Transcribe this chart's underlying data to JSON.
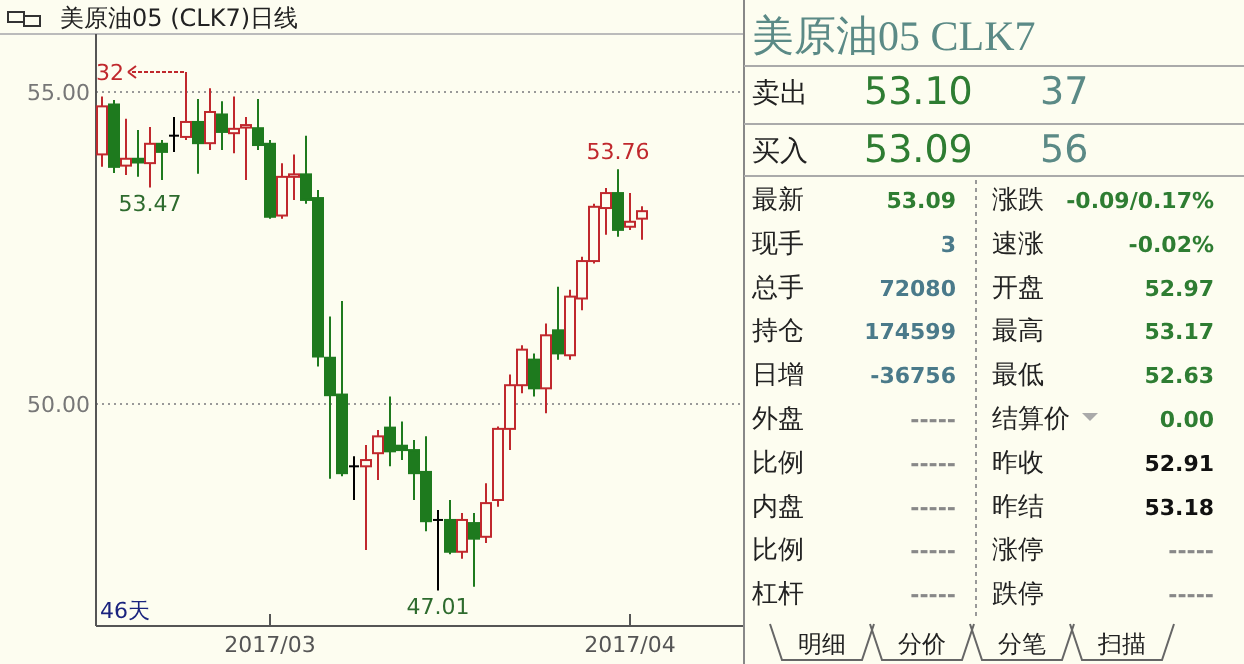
{
  "chart_data": [
    {
      "type": "candlestick",
      "title": "美原油05 (CLK7)日线",
      "categories": [
        null,
        null,
        null,
        null,
        null,
        null,
        null,
        null,
        null,
        null,
        null,
        null,
        null,
        null,
        "2017/03",
        null,
        null,
        null,
        null,
        null,
        null,
        null,
        null,
        null,
        null,
        null,
        null,
        null,
        null,
        null,
        null,
        null,
        null,
        null,
        null,
        null,
        null,
        null,
        null,
        null,
        null,
        null,
        null,
        null,
        "2017/04",
        null
      ],
      "ohlc": [
        [
          54.0,
          54.93,
          53.8,
          54.77
        ],
        [
          54.8,
          54.87,
          53.7,
          53.8
        ],
        [
          53.82,
          54.57,
          53.67,
          53.93
        ],
        [
          53.93,
          54.39,
          53.64,
          53.87
        ],
        [
          53.86,
          54.44,
          53.47,
          54.17
        ],
        [
          54.17,
          54.23,
          53.59,
          54.04
        ],
        [
          54.3,
          54.6,
          54.04,
          54.3
        ],
        [
          54.28,
          55.32,
          54.23,
          54.52
        ],
        [
          54.52,
          54.89,
          53.69,
          54.18
        ],
        [
          54.18,
          55.06,
          54.07,
          54.68
        ],
        [
          54.64,
          54.85,
          54.07,
          54.36
        ],
        [
          54.34,
          54.93,
          54.02,
          54.41
        ],
        [
          54.43,
          54.6,
          53.59,
          54.47
        ],
        [
          54.42,
          54.89,
          54.07,
          54.15
        ],
        [
          54.17,
          54.23,
          52.97,
          53.0
        ],
        [
          53.02,
          53.86,
          52.97,
          53.64
        ],
        [
          53.64,
          54.0,
          53.27,
          53.68
        ],
        [
          53.68,
          54.3,
          53.21,
          53.27
        ],
        [
          53.3,
          53.43,
          50.6,
          50.76
        ],
        [
          50.74,
          51.4,
          48.8,
          50.14
        ],
        [
          50.15,
          51.65,
          48.84,
          48.89
        ],
        [
          49.0,
          49.16,
          48.46,
          49.0
        ],
        [
          49.0,
          49.34,
          47.66,
          49.1
        ],
        [
          49.21,
          49.58,
          48.78,
          49.48
        ],
        [
          49.62,
          50.12,
          49.0,
          49.24
        ],
        [
          49.33,
          49.72,
          49.1,
          49.26
        ],
        [
          49.26,
          49.42,
          48.46,
          48.89
        ],
        [
          48.91,
          49.48,
          47.96,
          48.12
        ],
        [
          48.14,
          48.3,
          47.01,
          48.14
        ],
        [
          48.14,
          48.46,
          47.59,
          47.63
        ],
        [
          47.63,
          48.25,
          47.52,
          48.14
        ],
        [
          48.09,
          48.25,
          47.07,
          47.84
        ],
        [
          47.87,
          48.73,
          47.77,
          48.41
        ],
        [
          48.46,
          49.64,
          48.35,
          49.6
        ],
        [
          49.6,
          50.47,
          49.26,
          50.3
        ],
        [
          50.3,
          50.94,
          50.17,
          50.87
        ],
        [
          50.71,
          50.81,
          50.12,
          50.25
        ],
        [
          50.25,
          51.29,
          49.85,
          51.1
        ],
        [
          51.18,
          51.88,
          50.71,
          50.81
        ],
        [
          50.78,
          51.83,
          50.71,
          51.72
        ],
        [
          51.69,
          52.36,
          51.5,
          52.29
        ],
        [
          52.29,
          53.21,
          52.25,
          53.16
        ],
        [
          53.14,
          53.46,
          52.71,
          53.38
        ],
        [
          53.38,
          53.76,
          52.68,
          52.79
        ],
        [
          52.84,
          53.38,
          52.79,
          52.92
        ],
        [
          52.97,
          53.17,
          52.63,
          53.09
        ]
      ],
      "ylim": [
        46.44,
        55.93
      ],
      "yticks": [
        {
          "value": 55,
          "label": "55.00"
        },
        {
          "value": 50,
          "label": "50.00"
        }
      ],
      "grid": "y",
      "annotations": [
        "32",
        {
          "text": "53.47",
          "y": 53.47
        },
        {
          "text": "53.76",
          "y": 53.76
        },
        {
          "text": "47.01",
          "y": 47.01
        },
        "46天"
      ]
    },
    {
      "type": "other",
      "title": "美原油05 CLK7",
      "annotations": [
        "卖出",
        "53.10",
        "37",
        "买入",
        "53.09",
        "56",
        "最新",
        "53.09",
        "涨跌",
        "-0.09/0.17%",
        "现手",
        "3",
        "速涨",
        "-0.02%",
        "总手",
        "72080",
        "开盘",
        "52.97",
        "持仓",
        "174599",
        "最高",
        "53.17",
        "日增",
        "-36756",
        "最低",
        "52.63",
        "外盘",
        "-----",
        "结算价",
        "0.00",
        "比例",
        "-----",
        "昨收",
        "52.91",
        "内盘",
        "-----",
        "昨结",
        "53.18",
        "比例",
        "-----",
        "涨停",
        "-----",
        "杠杆",
        "-----",
        "跌停",
        "-----",
        "明细",
        "分价",
        "分笔",
        "扫描"
      ]
    }
  ]
}
